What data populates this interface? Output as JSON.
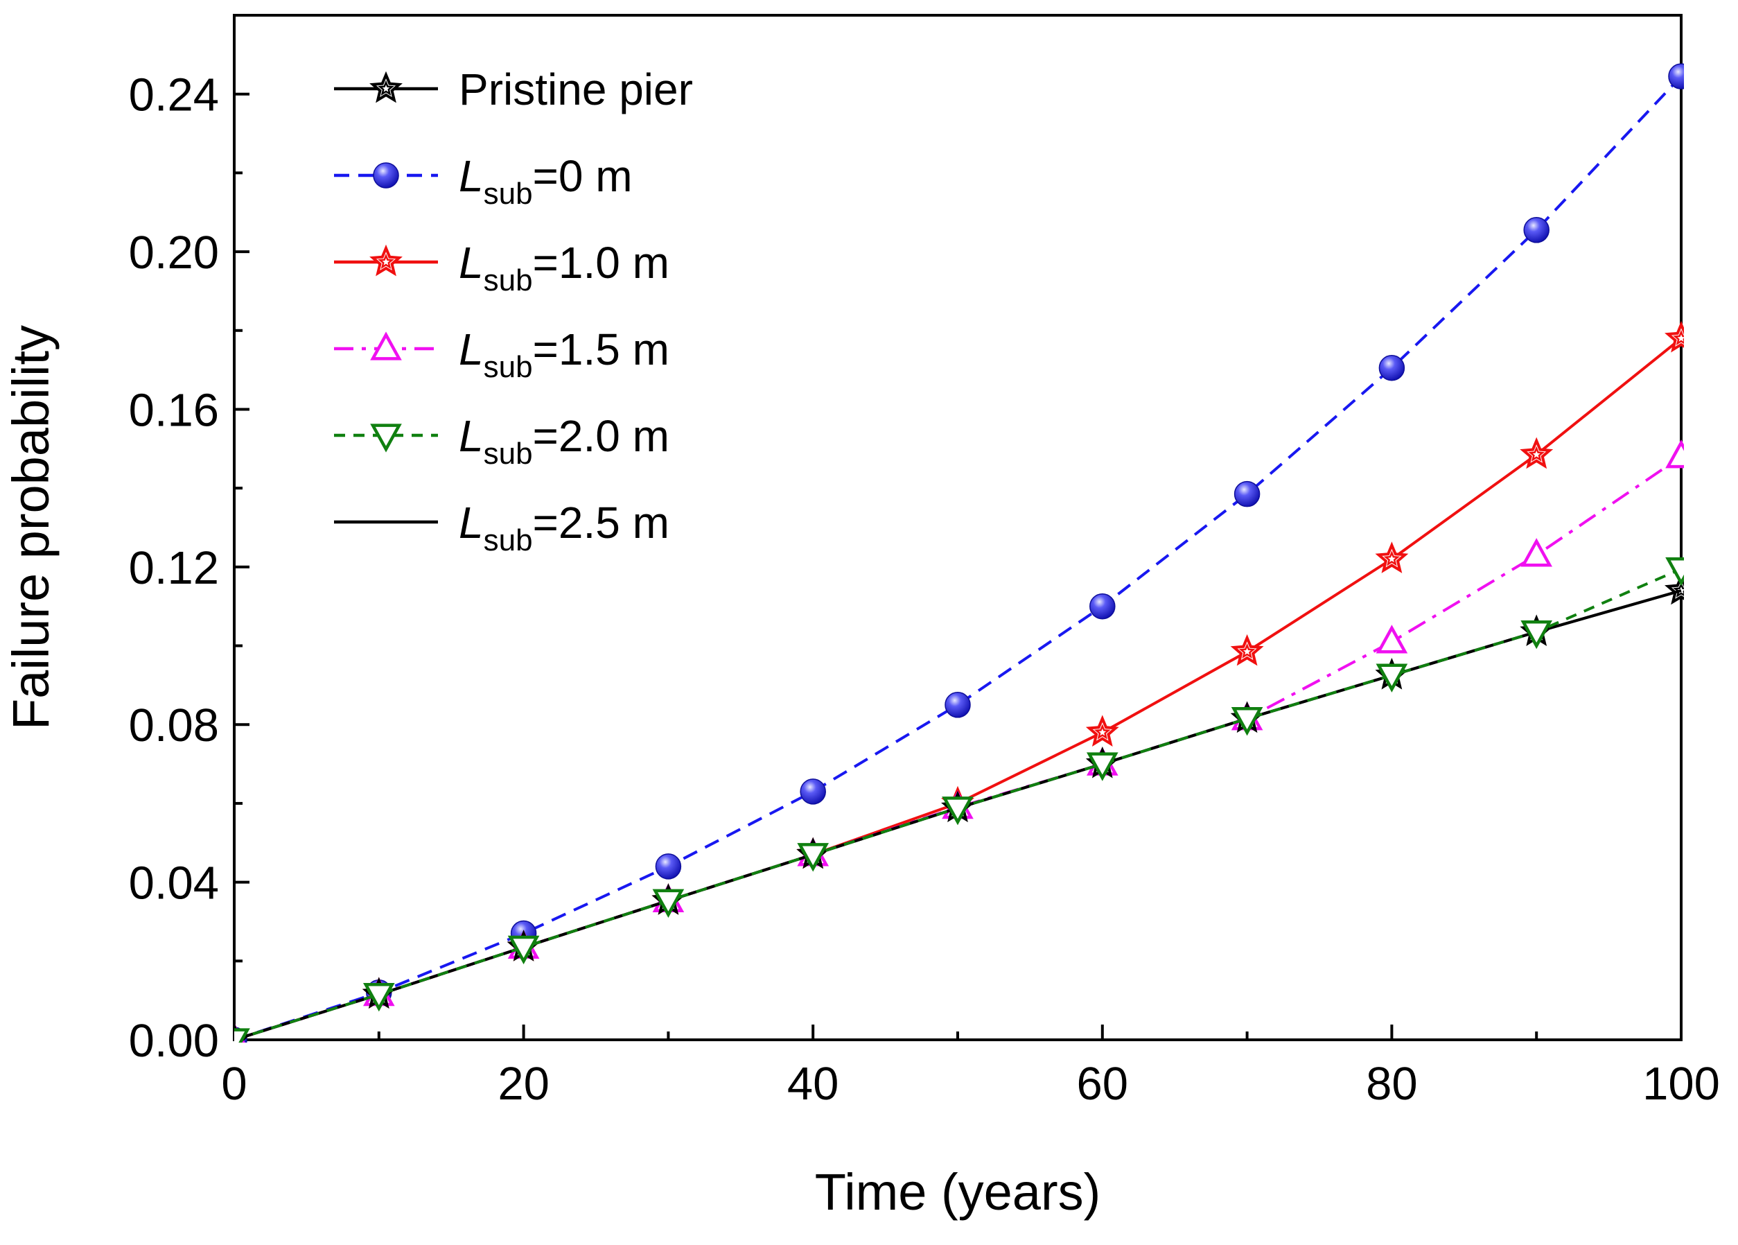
{
  "chart_data": {
    "type": "line",
    "xlabel": "Time (years)",
    "ylabel": "Failure probability",
    "xlim": [
      0,
      100
    ],
    "ylim": [
      0,
      0.26
    ],
    "xticks": [
      "0",
      "20",
      "40",
      "60",
      "80",
      "100"
    ],
    "yticks": [
      "0.00",
      "0.04",
      "0.08",
      "0.12",
      "0.16",
      "0.20",
      "0.24"
    ],
    "x": [
      0,
      10,
      20,
      30,
      40,
      50,
      60,
      70,
      80,
      90,
      100
    ],
    "legend_position": "top-left",
    "series": [
      {
        "name": "Pristine pier",
        "name_main": "Pristine pier",
        "name_sub": "",
        "name_rest": "",
        "color": "#000000",
        "dash": "solid",
        "marker": "star",
        "marker_fill": "none",
        "values": [
          0.0,
          0.0115,
          0.0235,
          0.0353,
          0.047,
          0.0588,
          0.07,
          0.0815,
          0.0925,
          0.1035,
          0.114
        ]
      },
      {
        "name": "Lsub=0 m",
        "name_main": "L",
        "name_sub": "sub",
        "name_rest": "=0 m",
        "color": "#1818f0",
        "dash": "dash",
        "marker": "sphere",
        "marker_fill": "#2a2ae6",
        "values": [
          0.0,
          0.012,
          0.027,
          0.044,
          0.063,
          0.085,
          0.11,
          0.1385,
          0.1705,
          0.2055,
          0.2445
        ]
      },
      {
        "name": "Lsub=1.0 m",
        "name_main": "L",
        "name_sub": "sub",
        "name_rest": "=1.0 m",
        "color": "#f01010",
        "dash": "solid",
        "marker": "star",
        "marker_fill": "none",
        "values": [
          0.0,
          0.0115,
          0.0235,
          0.0353,
          0.047,
          0.06,
          0.078,
          0.0985,
          0.122,
          0.1485,
          0.178
        ]
      },
      {
        "name": "Lsub=1.5 m",
        "name_main": "L",
        "name_sub": "sub",
        "name_rest": "=1.5 m",
        "color": "#f010f0",
        "dash": "dashdot",
        "marker": "triangle-up",
        "marker_fill": "none",
        "values": [
          0.0,
          0.0115,
          0.0235,
          0.0353,
          0.047,
          0.059,
          0.07,
          0.0815,
          0.101,
          0.123,
          0.148
        ]
      },
      {
        "name": "Lsub=2.0 m",
        "name_main": "L",
        "name_sub": "sub",
        "name_rest": "=2.0 m",
        "color": "#108010",
        "dash": "shortdash",
        "marker": "triangle-down",
        "marker_fill": "none",
        "values": [
          0.0,
          0.0115,
          0.0235,
          0.0353,
          0.047,
          0.0588,
          0.07,
          0.0815,
          0.0925,
          0.1035,
          0.1195
        ]
      },
      {
        "name": "Lsub=2.5 m",
        "name_main": "L",
        "name_sub": "sub",
        "name_rest": "=2.5 m",
        "color": "#000000",
        "dash": "solid",
        "marker": "none",
        "marker_fill": "none",
        "values": [
          0.0,
          0.0115,
          0.0235,
          0.0353,
          0.047,
          0.0588,
          0.07,
          0.0815,
          0.0925,
          0.1035,
          0.114
        ]
      }
    ]
  }
}
